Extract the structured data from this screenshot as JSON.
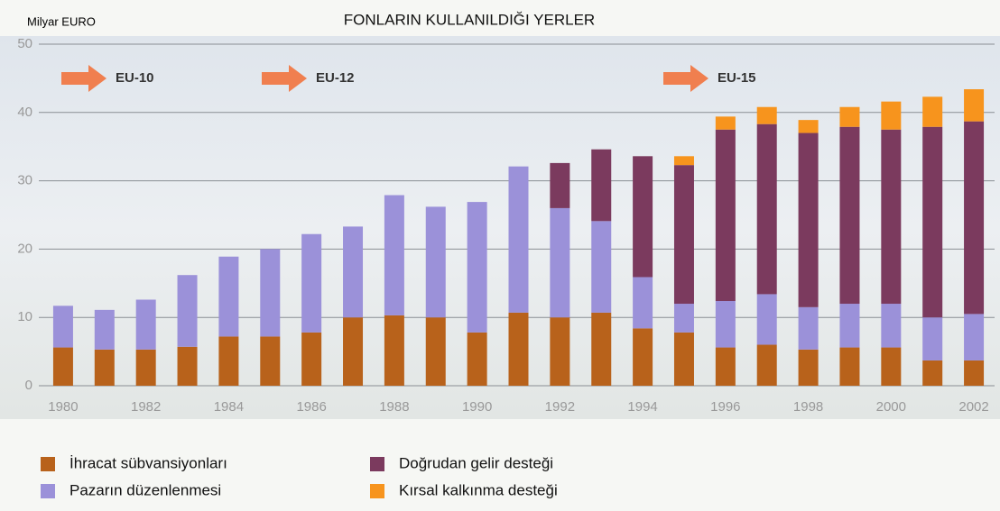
{
  "chart_data": {
    "type": "stacked-bar",
    "title": "FONLARIN  KULLANILDIĞI  YERLER",
    "y_label": "Milyar EURO",
    "annotations": [
      "EU-10",
      "EU-12",
      "EU-15"
    ],
    "categories": [
      "1980",
      null,
      "1982",
      null,
      "1984",
      null,
      "1986",
      null,
      "1988",
      null,
      "1990",
      null,
      "1992",
      null,
      "1994",
      null,
      "1996",
      null,
      "1998",
      null,
      "2000",
      null,
      "2002"
    ],
    "series": [
      {
        "name": "İhracat sübvansiyonları",
        "color": "#b8621b",
        "values": [
          5.6,
          5.3,
          5.3,
          5.7,
          7.2,
          7.2,
          7.8,
          10.0,
          10.3,
          10.0,
          7.8,
          10.7,
          10.0,
          10.7,
          8.4,
          7.8,
          5.6,
          6.0,
          5.3,
          5.6,
          5.6,
          3.7,
          3.7
        ]
      },
      {
        "name": "Pazarın düzenlenmesi",
        "color": "#9b91d9",
        "values": [
          6.1,
          5.8,
          7.3,
          10.5,
          11.7,
          12.8,
          14.4,
          13.3,
          17.6,
          16.2,
          19.1,
          21.4,
          16.0,
          13.4,
          7.5,
          4.2,
          6.8,
          7.4,
          6.2,
          6.4,
          6.4,
          6.3,
          6.8
        ]
      },
      {
        "name": "Doğrudan gelir desteği",
        "color": "#7b3a5e",
        "values": [
          null,
          null,
          null,
          null,
          null,
          null,
          null,
          null,
          null,
          null,
          null,
          null,
          6.6,
          10.5,
          17.7,
          20.3,
          25.1,
          24.9,
          25.5,
          25.9,
          25.5,
          27.9,
          28.2
        ]
      },
      {
        "name": "Kırsal kalkınma desteği",
        "color": "#f7941d",
        "values": [
          null,
          null,
          null,
          null,
          null,
          null,
          null,
          null,
          null,
          null,
          null,
          null,
          null,
          null,
          null,
          1.3,
          1.9,
          2.5,
          1.9,
          2.9,
          4.1,
          4.4,
          4.7
        ]
      }
    ],
    "ylim": [
      0,
      50
    ],
    "yticks": [
      0,
      10,
      20,
      30,
      40,
      50
    ],
    "grid": true
  }
}
